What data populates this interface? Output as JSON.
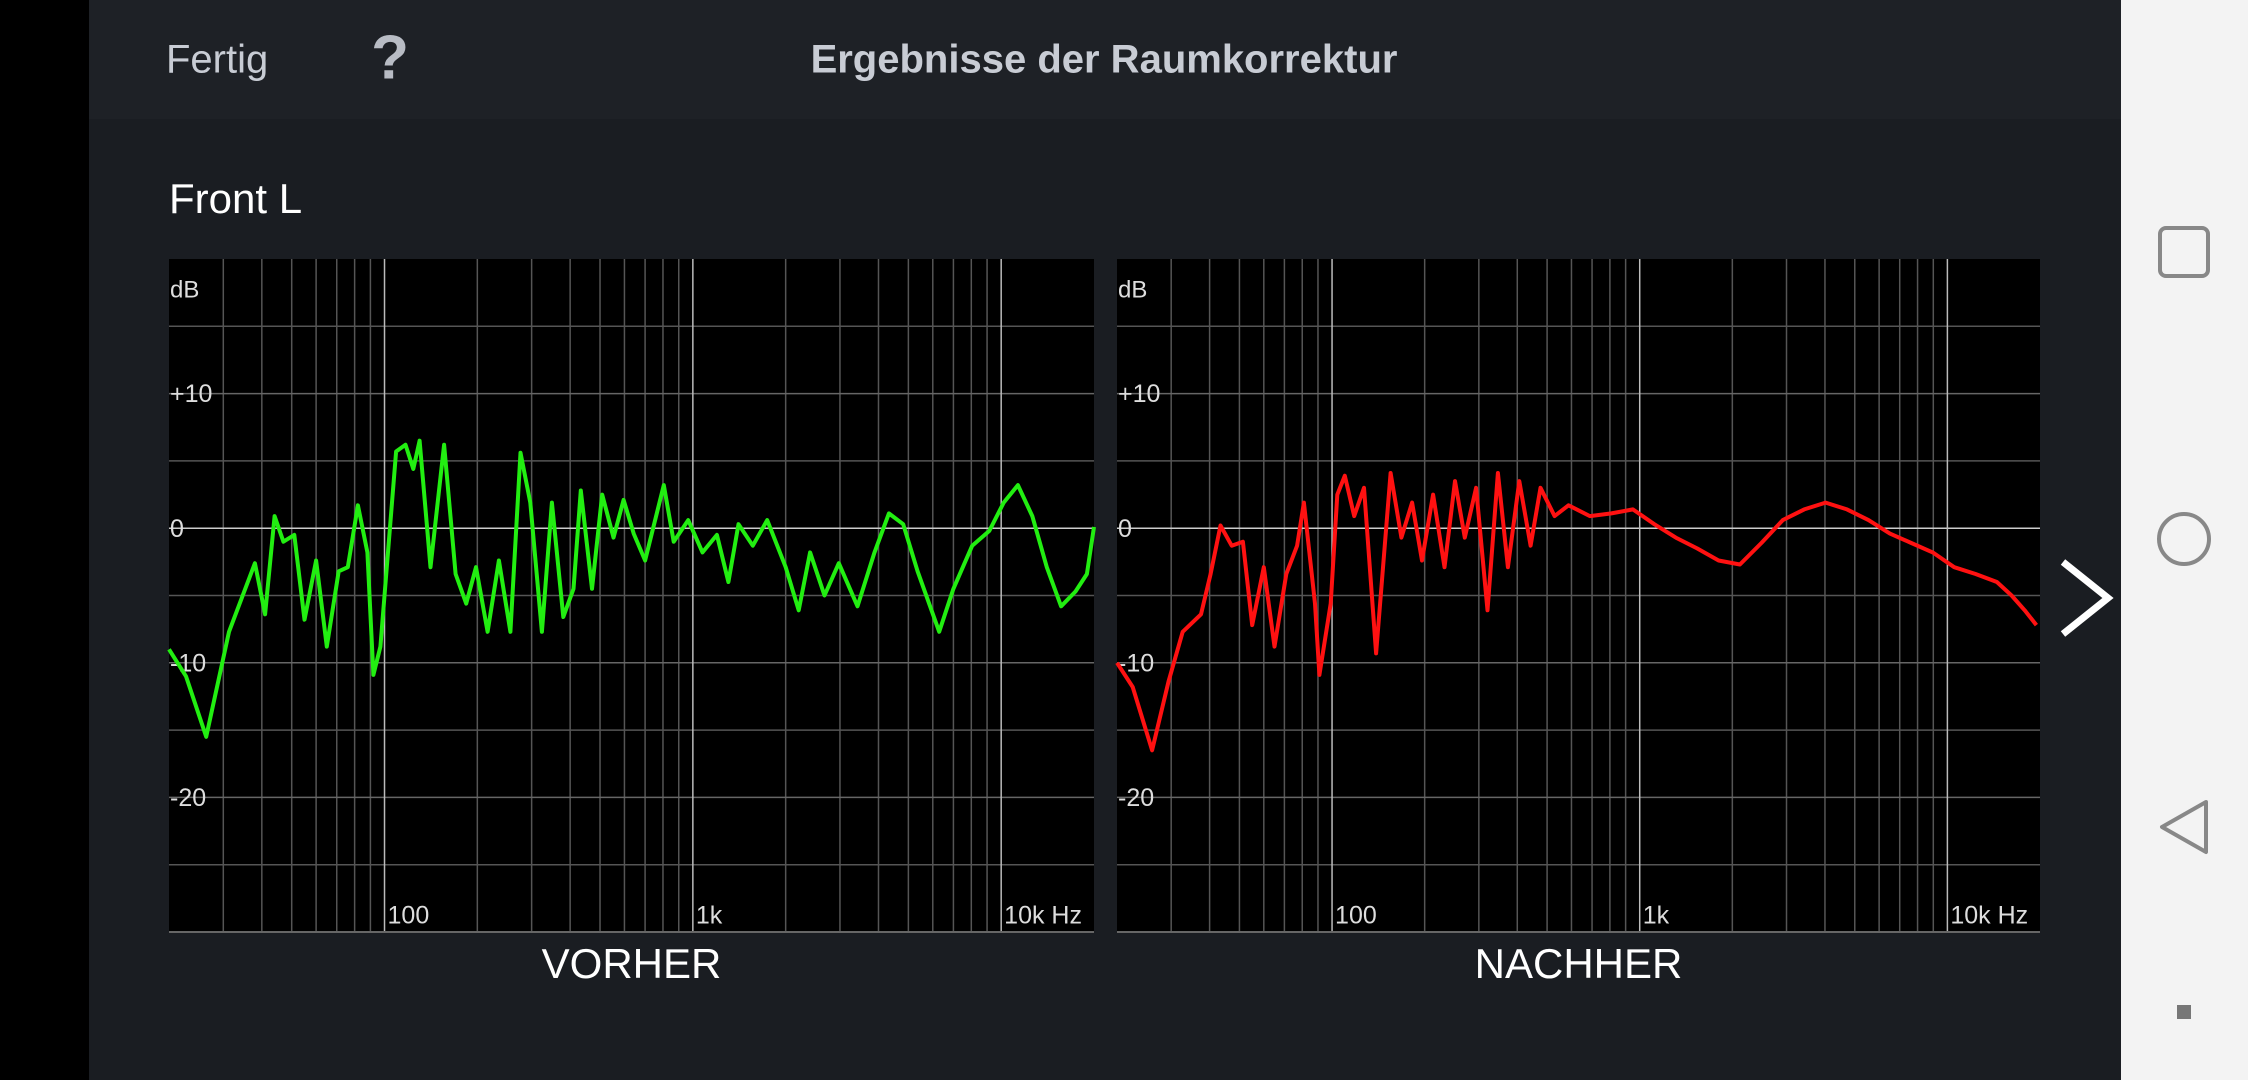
{
  "header": {
    "done": "Fertig",
    "help": "?",
    "title": "Ergebnisse der Raumkorrektur"
  },
  "channel": "Front L",
  "chart_data": [
    {
      "type": "line",
      "title": "VORHER",
      "y_unit": "dB",
      "xscale": "log",
      "color": "#22ee11",
      "xlim": [
        20,
        20000
      ],
      "ylim": [
        -30,
        20
      ],
      "yticks": [
        {
          "value": 10,
          "label": "+10"
        },
        0,
        -10,
        -20
      ],
      "yminor": [
        15,
        5,
        -5,
        -15,
        -25
      ],
      "xticks": [
        100,
        {
          "value": 1000,
          "label": "1k"
        },
        {
          "value": 10000,
          "label": "10k Hz"
        }
      ],
      "xminor": [
        30,
        40,
        50,
        60,
        70,
        80,
        90,
        200,
        300,
        400,
        500,
        600,
        700,
        800,
        900,
        2000,
        3000,
        4000,
        5000,
        6000,
        7000,
        8000,
        9000
      ],
      "x": [
        20,
        22.7,
        26.4,
        31.3,
        38,
        41,
        44,
        47,
        51,
        55,
        60,
        65,
        71,
        76,
        82,
        88,
        92,
        97,
        109,
        117,
        124,
        130,
        141,
        156,
        170,
        184,
        198,
        216,
        235,
        256,
        276,
        297,
        324,
        349,
        380,
        410,
        433,
        471,
        508,
        553,
        596,
        643,
        700,
        805,
        867,
        966,
        1075,
        1197,
        1304,
        1406,
        1565,
        1742,
        2000,
        2204,
        2400,
        2673,
        2974,
        3420,
        3884,
        4325,
        4810,
        5357,
        6295,
        7000,
        8053,
        9150,
        10190,
        11330,
        12620,
        14060,
        15640,
        17420,
        18970,
        20000
      ],
      "values": [
        -9,
        -11,
        -15.5,
        -7.7,
        -2.6,
        -6.4,
        0.9,
        -1,
        -0.5,
        -6.8,
        -2.4,
        -8.8,
        -3.2,
        -2.9,
        1.7,
        -1.8,
        -10.9,
        -8.8,
        5.7,
        6.2,
        4.4,
        6.5,
        -2.9,
        6.2,
        -3.4,
        -5.6,
        -2.9,
        -7.7,
        -2.4,
        -7.7,
        5.6,
        1.9,
        -7.7,
        1.9,
        -6.6,
        -4.5,
        2.8,
        -4.5,
        2.5,
        -0.7,
        2.1,
        -0.4,
        -2.4,
        3.2,
        -1,
        0.6,
        -1.8,
        -0.5,
        -4,
        0.3,
        -1.3,
        0.6,
        -2.9,
        -6.1,
        -1.8,
        -5,
        -2.6,
        -5.8,
        -1.8,
        1.1,
        0.3,
        -3.2,
        -7.7,
        -4.5,
        -1.3,
        -0.2,
        1.9,
        3.2,
        0.9,
        -2.9,
        -5.8,
        -4.7,
        -3.4,
        0.1
      ]
    },
    {
      "type": "line",
      "title": "NACHHER",
      "y_unit": "dB",
      "xscale": "log",
      "color": "#ff1111",
      "xlim": [
        20,
        20000
      ],
      "ylim": [
        -30,
        20
      ],
      "yticks": [
        {
          "value": 10,
          "label": "+10"
        },
        0,
        -10,
        -20
      ],
      "yminor": [
        15,
        5,
        -5,
        -15,
        -25
      ],
      "xticks": [
        100,
        {
          "value": 1000,
          "label": "1k"
        },
        {
          "value": 10000,
          "label": "10k Hz"
        }
      ],
      "xminor": [
        30,
        40,
        50,
        60,
        70,
        80,
        90,
        200,
        300,
        400,
        500,
        600,
        700,
        800,
        900,
        2000,
        3000,
        4000,
        5000,
        6000,
        7000,
        8000,
        9000
      ],
      "x": [
        20,
        22.5,
        26,
        29.4,
        32.7,
        37.5,
        40.3,
        43.4,
        47.2,
        51.3,
        55,
        60,
        65,
        71,
        77,
        81,
        88,
        91,
        99,
        104,
        110,
        118,
        127,
        139,
        155,
        168,
        182,
        196,
        213,
        232,
        251,
        270,
        294,
        320,
        346,
        373,
        406,
        442,
        476,
        529,
        587,
        689,
        809,
        950,
        1115,
        1310,
        1537,
        1804,
        2117,
        2486,
        2918,
        3425,
        4020,
        4719,
        5540,
        6503,
        7634,
        8960,
        10520,
        12350,
        14490,
        16170,
        17840,
        19470
      ],
      "values": [
        -10,
        -11.8,
        -16.5,
        -11.4,
        -7.7,
        -6.4,
        -3.4,
        0.2,
        -1.3,
        -1,
        -7.2,
        -2.9,
        -8.8,
        -3.4,
        -1.3,
        1.9,
        -5.6,
        -10.9,
        -5.6,
        2.5,
        3.9,
        0.9,
        3,
        -9.3,
        4.1,
        -0.7,
        1.9,
        -2.4,
        2.5,
        -2.9,
        3.5,
        -0.7,
        3,
        -6.1,
        4.1,
        -2.9,
        3.5,
        -1.3,
        3,
        0.9,
        1.7,
        0.9,
        1.1,
        1.4,
        0.3,
        -0.7,
        -1.5,
        -2.4,
        -2.7,
        -1.1,
        0.6,
        1.4,
        1.9,
        1.4,
        0.6,
        -0.4,
        -1.1,
        -1.8,
        -2.9,
        -3.4,
        -4,
        -5,
        -6.1,
        -7.2
      ]
    }
  ]
}
